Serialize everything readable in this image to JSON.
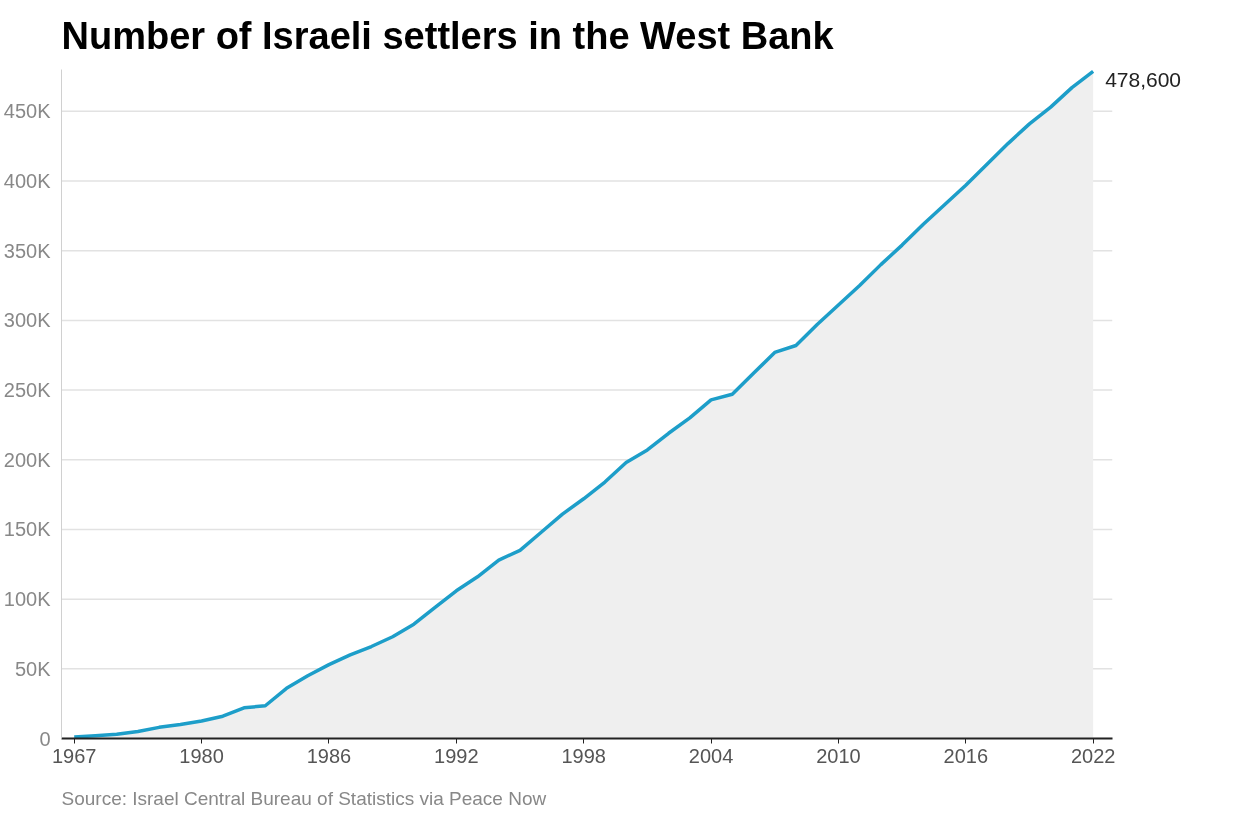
{
  "chart_data": {
    "type": "area",
    "title": "Number of Israeli settlers in the West Bank",
    "categories": [
      "1967",
      null,
      null,
      null,
      null,
      null,
      "1980",
      null,
      null,
      null,
      null,
      null,
      "1986",
      null,
      null,
      null,
      null,
      null,
      "1992",
      null,
      null,
      null,
      null,
      null,
      "1998",
      null,
      null,
      null,
      null,
      null,
      "2004",
      null,
      null,
      null,
      null,
      null,
      "2010",
      null,
      null,
      null,
      null,
      null,
      "2016",
      null,
      null,
      null,
      null,
      null,
      "2022"
    ],
    "series": [
      {
        "color": "#1d9ec9",
        "values": [
          1000,
          2000,
          3000,
          5000,
          8000,
          10000,
          12500,
          16000,
          22000,
          23500,
          36000,
          45000,
          53000,
          60000,
          66000,
          73000,
          82000,
          94000,
          106000,
          116000,
          128000,
          135000,
          148000,
          161000,
          172000,
          184000,
          198000,
          207000,
          219000,
          230000,
          243000,
          247000,
          262000,
          277000,
          282000,
          297000,
          311000,
          325000,
          340000,
          354000,
          369000,
          383000,
          397000,
          412000,
          427000,
          441000,
          453000,
          467000,
          478600
        ],
        "value_labels": [
          null,
          null,
          null,
          null,
          null,
          null,
          null,
          null,
          null,
          null,
          null,
          null,
          null,
          null,
          null,
          null,
          null,
          null,
          null,
          null,
          null,
          null,
          null,
          null,
          null,
          null,
          null,
          null,
          null,
          null,
          null,
          null,
          null,
          null,
          null,
          null,
          null,
          null,
          null,
          null,
          null,
          null,
          null,
          null,
          null,
          null,
          null,
          null,
          "478,600"
        ]
      }
    ],
    "ylim": [
      0,
      480000
    ],
    "yticks": [
      0,
      {
        "value": 50000,
        "label": "50K"
      },
      {
        "value": 100000,
        "label": "100K"
      },
      {
        "value": 150000,
        "label": "150K"
      },
      {
        "value": 200000,
        "label": "200K"
      },
      {
        "value": 250000,
        "label": "250K"
      },
      {
        "value": 300000,
        "label": "300K"
      },
      {
        "value": 350000,
        "label": "350K"
      },
      {
        "value": 400000,
        "label": "400K"
      },
      {
        "value": 450000,
        "label": "450K"
      }
    ],
    "grid": "y",
    "annotations": [
      "Source: Israel Central Bureau of Statistics via Peace Now"
    ]
  }
}
